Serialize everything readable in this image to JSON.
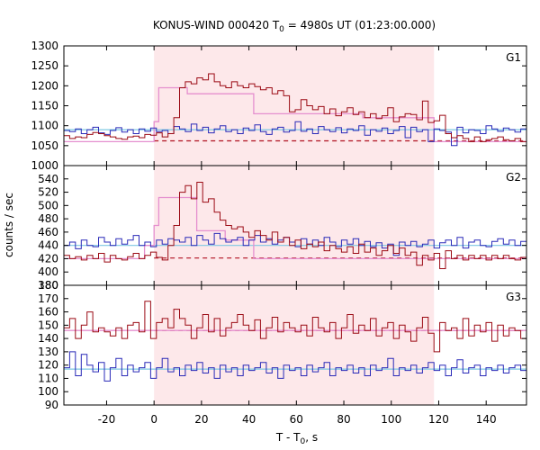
{
  "chart_data": {
    "type": "line",
    "title_main": "KONUS-WIND 000420 T",
    "title_sub": "0",
    "title_rest": " = 4980s UT (01:23:00.000)",
    "xlabel_main": "T - T",
    "xlabel_sub": "0",
    "xlabel_rest": ", s",
    "ylabel": "counts / sec",
    "xlim": [
      -38,
      157
    ],
    "xticks": [
      -20,
      0,
      20,
      40,
      60,
      80,
      100,
      120,
      140
    ],
    "shaded_interval": [
      0,
      118
    ],
    "colors": {
      "shade": "#fde8ea",
      "source": "#9b0a14",
      "background": "#2a2ab8",
      "background_fit": "#7ec8e3",
      "model": "#e58fcf",
      "dashed": "#b01020"
    },
    "panels": [
      {
        "label": "G1",
        "ylim": [
          1000,
          1300
        ],
        "yticks": [
          1000,
          1050,
          1100,
          1150,
          1200,
          1250,
          1300
        ],
        "red_level": 1062,
        "blue_fit": 1090,
        "red_x": [
          -38,
          118,
          157
        ],
        "red": [
          1075,
          1068,
          1072,
          1070,
          1078,
          1083,
          1080,
          1075,
          1072,
          1068,
          1066,
          1072,
          1074,
          1070,
          1078,
          1076,
          1082,
          1072,
          1080,
          1120,
          1195,
          1210,
          1205,
          1220,
          1215,
          1230,
          1210,
          1200,
          1195,
          1210,
          1200,
          1195,
          1205,
          1198,
          1190,
          1195,
          1180,
          1188,
          1175,
          1135,
          1140,
          1165,
          1150,
          1140,
          1148,
          1130,
          1142,
          1125,
          1135,
          1145,
          1128,
          1135,
          1120,
          1130,
          1118,
          1125,
          1145,
          1110,
          1122,
          1130,
          1128,
          1115,
          1162,
          1108,
          1112,
          1126,
          1080,
          1070,
          1075,
          1068,
          1060,
          1072,
          1060,
          1065,
          1068,
          1072,
          1065,
          1062,
          1068,
          1060
        ],
        "blue": [
          1088,
          1085,
          1092,
          1080,
          1090,
          1096,
          1082,
          1078,
          1088,
          1095,
          1084,
          1090,
          1080,
          1092,
          1086,
          1094,
          1085,
          1088,
          1080,
          1098,
          1092,
          1085,
          1104,
          1088,
          1096,
          1082,
          1092,
          1100,
          1085,
          1090,
          1080,
          1094,
          1088,
          1102,
          1085,
          1078,
          1092,
          1096,
          1084,
          1088,
          1110,
          1086,
          1092,
          1080,
          1098,
          1090,
          1085,
          1095,
          1082,
          1092,
          1088,
          1100,
          1076,
          1090,
          1086,
          1094,
          1080,
          1088,
          1098,
          1070,
          1096,
          1085,
          1090,
          1060,
          1092,
          1088,
          1084,
          1050,
          1096,
          1082,
          1090,
          1088,
          1080,
          1100,
          1092,
          1086,
          1094,
          1090,
          1084,
          1092
        ],
        "model_steps": [
          [
            -38,
            0,
            1060
          ],
          [
            0,
            2,
            1110
          ],
          [
            2,
            14,
            1195
          ],
          [
            14,
            42,
            1180
          ],
          [
            42,
            88,
            1130
          ],
          [
            88,
            118,
            1120
          ],
          [
            118,
            157,
            1060
          ]
        ]
      },
      {
        "label": "G2",
        "ylim": [
          380,
          560
        ],
        "yticks": [
          380,
          400,
          420,
          440,
          460,
          480,
          500,
          520,
          540
        ],
        "red_level": 421,
        "blue_fit": 440,
        "red_x": [
          -38,
          118,
          157
        ],
        "red": [
          425,
          420,
          423,
          418,
          425,
          420,
          428,
          415,
          425,
          420,
          418,
          423,
          428,
          420,
          425,
          430,
          422,
          418,
          440,
          470,
          520,
          530,
          510,
          535,
          505,
          510,
          490,
          478,
          470,
          465,
          468,
          460,
          452,
          462,
          455,
          448,
          460,
          445,
          452,
          440,
          448,
          435,
          442,
          438,
          445,
          432,
          440,
          435,
          430,
          438,
          428,
          442,
          430,
          436,
          425,
          432,
          440,
          428,
          436,
          425,
          430,
          410,
          425,
          418,
          428,
          405,
          432,
          420,
          425,
          418,
          425,
          420,
          425,
          418,
          425,
          420,
          425,
          420,
          418,
          422
        ],
        "blue": [
          440,
          445,
          435,
          448,
          440,
          438,
          452,
          445,
          440,
          450,
          442,
          448,
          455,
          440,
          445,
          438,
          448,
          442,
          450,
          448,
          445,
          452,
          440,
          455,
          448,
          442,
          458,
          450,
          445,
          448,
          452,
          440,
          448,
          455,
          445,
          450,
          442,
          448,
          452,
          445,
          438,
          450,
          442,
          448,
          440,
          452,
          445,
          438,
          448,
          442,
          450,
          440,
          446,
          438,
          444,
          436,
          442,
          425,
          445,
          440,
          446,
          438,
          442,
          448,
          436,
          444,
          448,
          440,
          452,
          436,
          445,
          448,
          440,
          438,
          446,
          450,
          442,
          448,
          440,
          446
        ],
        "model_steps": [
          [
            -38,
            -4,
            420
          ],
          [
            -4,
            0,
            440
          ],
          [
            0,
            2,
            470
          ],
          [
            2,
            18,
            512
          ],
          [
            18,
            30,
            462
          ],
          [
            30,
            42,
            448
          ],
          [
            42,
            157,
            420
          ]
        ]
      },
      {
        "label": "G3",
        "ylim": [
          90,
          180
        ],
        "yticks": [
          90,
          100,
          110,
          120,
          130,
          140,
          150,
          160,
          170,
          180
        ],
        "red_level": 146,
        "blue_fit": 117,
        "red_x": [
          -38,
          118,
          157
        ],
        "red": [
          148,
          155,
          140,
          150,
          160,
          145,
          148,
          145,
          142,
          148,
          140,
          150,
          152,
          145,
          168,
          140,
          152,
          155,
          148,
          162,
          155,
          150,
          140,
          148,
          158,
          145,
          155,
          142,
          148,
          152,
          158,
          150,
          146,
          154,
          140,
          148,
          156,
          145,
          152,
          148,
          145,
          150,
          142,
          156,
          148,
          145,
          152,
          140,
          148,
          158,
          144,
          150,
          146,
          155,
          142,
          148,
          152,
          140,
          150,
          145,
          138,
          148,
          156,
          144,
          130,
          152,
          146,
          148,
          140,
          155,
          142,
          150,
          145,
          152,
          138,
          150,
          142,
          148,
          146,
          140
        ],
        "blue": [
          118,
          130,
          112,
          128,
          120,
          115,
          122,
          108,
          118,
          125,
          112,
          120,
          115,
          118,
          122,
          110,
          118,
          125,
          115,
          118,
          112,
          120,
          116,
          122,
          114,
          118,
          110,
          120,
          115,
          118,
          112,
          120,
          116,
          118,
          122,
          114,
          118,
          110,
          120,
          116,
          118,
          112,
          120,
          115,
          118,
          122,
          112,
          118,
          116,
          120,
          114,
          118,
          112,
          120,
          116,
          118,
          125,
          112,
          118,
          116,
          120,
          114,
          118,
          122,
          116,
          120,
          112,
          118,
          124,
          114,
          118,
          120,
          112,
          118,
          116,
          120,
          114,
          118,
          120,
          116
        ],
        "model_steps": [
          [
            -38,
            157,
            146
          ]
        ]
      }
    ]
  }
}
